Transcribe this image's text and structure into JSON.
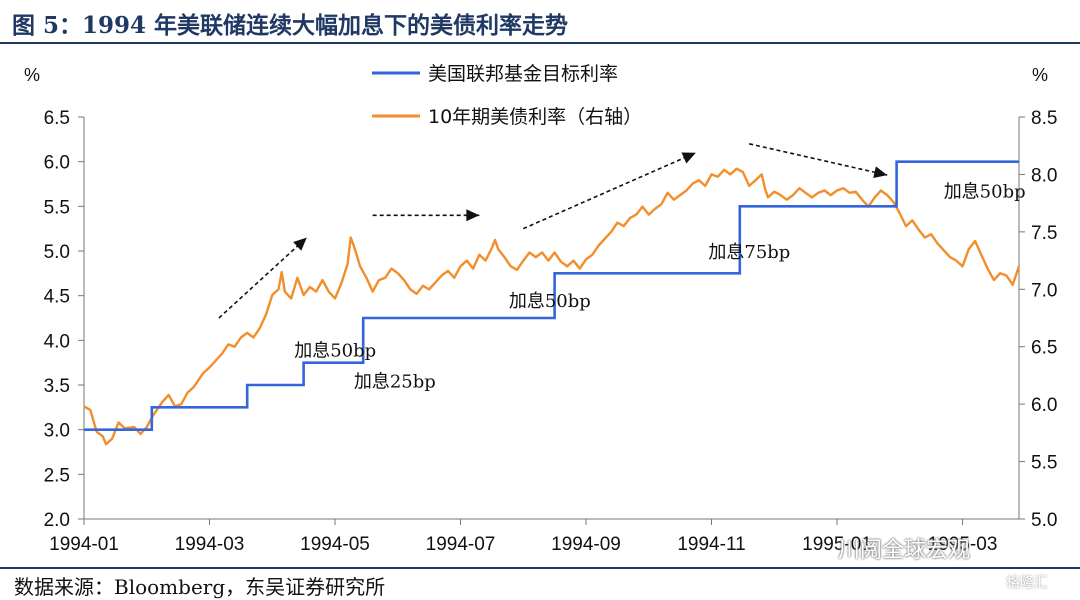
{
  "title": "图 5：1994 年美联储连续大幅加息下的美债利率走势",
  "source": "数据来源：Bloomberg，东吴证券研究所",
  "watermark": "川阅全球宏观",
  "watermark_logo": "格隆汇",
  "chart_data": {
    "type": "line",
    "left_unit": "%",
    "right_unit": "%",
    "left_ylim": [
      2.0,
      6.5
    ],
    "right_ylim": [
      5.0,
      8.5
    ],
    "left_ticks": [
      "2.0",
      "2.5",
      "3.0",
      "3.5",
      "4.0",
      "4.5",
      "5.0",
      "5.5",
      "6.0",
      "6.5"
    ],
    "right_ticks": [
      "5.0",
      "5.5",
      "6.0",
      "6.5",
      "7.0",
      "7.5",
      "8.0",
      "8.5"
    ],
    "x_ticks": [
      "1994-01",
      "1994-03",
      "1994-05",
      "1994-07",
      "1994-09",
      "1994-11",
      "1995-01",
      "1995-03"
    ],
    "x_range_months": [
      0,
      14.9
    ],
    "grid": false,
    "legend_position": "top-center",
    "colors": {
      "fed": "#3366dd",
      "ust": "#f28e2b"
    },
    "series": [
      {
        "name": "美国联邦基金目标利率",
        "axis": "left",
        "shape": "step",
        "points": [
          [
            0.0,
            3.0
          ],
          [
            1.08,
            3.0
          ],
          [
            1.08,
            3.25
          ],
          [
            2.6,
            3.25
          ],
          [
            2.6,
            3.5
          ],
          [
            3.5,
            3.5
          ],
          [
            3.5,
            3.75
          ],
          [
            4.45,
            3.75
          ],
          [
            4.45,
            4.25
          ],
          [
            7.5,
            4.25
          ],
          [
            7.5,
            4.75
          ],
          [
            10.45,
            4.75
          ],
          [
            10.45,
            5.5
          ],
          [
            12.95,
            5.5
          ],
          [
            12.95,
            6.0
          ],
          [
            14.9,
            6.0
          ]
        ]
      },
      {
        "name": "10年期美债利率（右轴）",
        "axis": "right",
        "shape": "line",
        "points": [
          [
            0.0,
            5.98
          ],
          [
            0.1,
            5.95
          ],
          [
            0.2,
            5.76
          ],
          [
            0.3,
            5.72
          ],
          [
            0.35,
            5.65
          ],
          [
            0.45,
            5.7
          ],
          [
            0.55,
            5.84
          ],
          [
            0.65,
            5.79
          ],
          [
            0.8,
            5.8
          ],
          [
            0.9,
            5.74
          ],
          [
            1.0,
            5.8
          ],
          [
            1.1,
            5.9
          ],
          [
            1.25,
            6.02
          ],
          [
            1.35,
            6.08
          ],
          [
            1.45,
            5.98
          ],
          [
            1.55,
            6.0
          ],
          [
            1.65,
            6.1
          ],
          [
            1.75,
            6.15
          ],
          [
            1.9,
            6.27
          ],
          [
            2.0,
            6.32
          ],
          [
            2.1,
            6.38
          ],
          [
            2.2,
            6.44
          ],
          [
            2.3,
            6.52
          ],
          [
            2.4,
            6.5
          ],
          [
            2.5,
            6.58
          ],
          [
            2.6,
            6.62
          ],
          [
            2.7,
            6.58
          ],
          [
            2.8,
            6.66
          ],
          [
            2.9,
            6.78
          ],
          [
            3.0,
            6.95
          ],
          [
            3.1,
            7.0
          ],
          [
            3.15,
            7.15
          ],
          [
            3.2,
            6.98
          ],
          [
            3.3,
            6.92
          ],
          [
            3.4,
            7.1
          ],
          [
            3.5,
            6.95
          ],
          [
            3.6,
            7.02
          ],
          [
            3.7,
            6.98
          ],
          [
            3.8,
            7.08
          ],
          [
            3.9,
            6.98
          ],
          [
            4.0,
            6.92
          ],
          [
            4.1,
            7.05
          ],
          [
            4.2,
            7.22
          ],
          [
            4.25,
            7.45
          ],
          [
            4.3,
            7.38
          ],
          [
            4.4,
            7.2
          ],
          [
            4.5,
            7.1
          ],
          [
            4.6,
            6.98
          ],
          [
            4.7,
            7.08
          ],
          [
            4.8,
            7.1
          ],
          [
            4.9,
            7.18
          ],
          [
            5.0,
            7.14
          ],
          [
            5.1,
            7.08
          ],
          [
            5.2,
            7.0
          ],
          [
            5.3,
            6.96
          ],
          [
            5.4,
            7.03
          ],
          [
            5.5,
            7.0
          ],
          [
            5.6,
            7.06
          ],
          [
            5.7,
            7.12
          ],
          [
            5.8,
            7.16
          ],
          [
            5.9,
            7.1
          ],
          [
            6.0,
            7.2
          ],
          [
            6.1,
            7.25
          ],
          [
            6.2,
            7.18
          ],
          [
            6.3,
            7.3
          ],
          [
            6.4,
            7.25
          ],
          [
            6.5,
            7.36
          ],
          [
            6.55,
            7.43
          ],
          [
            6.6,
            7.35
          ],
          [
            6.7,
            7.28
          ],
          [
            6.8,
            7.2
          ],
          [
            6.9,
            7.17
          ],
          [
            7.0,
            7.25
          ],
          [
            7.1,
            7.32
          ],
          [
            7.2,
            7.28
          ],
          [
            7.3,
            7.32
          ],
          [
            7.4,
            7.25
          ],
          [
            7.5,
            7.32
          ],
          [
            7.6,
            7.24
          ],
          [
            7.7,
            7.2
          ],
          [
            7.8,
            7.25
          ],
          [
            7.9,
            7.18
          ],
          [
            8.0,
            7.26
          ],
          [
            8.1,
            7.3
          ],
          [
            8.2,
            7.38
          ],
          [
            8.3,
            7.44
          ],
          [
            8.4,
            7.5
          ],
          [
            8.5,
            7.58
          ],
          [
            8.6,
            7.55
          ],
          [
            8.7,
            7.62
          ],
          [
            8.8,
            7.65
          ],
          [
            8.9,
            7.72
          ],
          [
            9.0,
            7.65
          ],
          [
            9.1,
            7.7
          ],
          [
            9.2,
            7.74
          ],
          [
            9.3,
            7.84
          ],
          [
            9.4,
            7.78
          ],
          [
            9.5,
            7.82
          ],
          [
            9.6,
            7.86
          ],
          [
            9.7,
            7.92
          ],
          [
            9.8,
            7.95
          ],
          [
            9.9,
            7.9
          ],
          [
            10.0,
            8.0
          ],
          [
            10.1,
            7.98
          ],
          [
            10.2,
            8.04
          ],
          [
            10.3,
            8.0
          ],
          [
            10.4,
            8.05
          ],
          [
            10.5,
            8.02
          ],
          [
            10.55,
            7.96
          ],
          [
            10.6,
            7.9
          ],
          [
            10.7,
            7.95
          ],
          [
            10.8,
            8.0
          ],
          [
            10.85,
            7.88
          ],
          [
            10.9,
            7.8
          ],
          [
            11.0,
            7.85
          ],
          [
            11.1,
            7.82
          ],
          [
            11.2,
            7.78
          ],
          [
            11.3,
            7.82
          ],
          [
            11.4,
            7.88
          ],
          [
            11.5,
            7.84
          ],
          [
            11.6,
            7.8
          ],
          [
            11.7,
            7.84
          ],
          [
            11.8,
            7.86
          ],
          [
            11.9,
            7.82
          ],
          [
            12.0,
            7.86
          ],
          [
            12.1,
            7.88
          ],
          [
            12.2,
            7.84
          ],
          [
            12.3,
            7.85
          ],
          [
            12.4,
            7.78
          ],
          [
            12.5,
            7.72
          ],
          [
            12.6,
            7.8
          ],
          [
            12.7,
            7.86
          ],
          [
            12.8,
            7.82
          ],
          [
            12.9,
            7.76
          ],
          [
            13.0,
            7.66
          ],
          [
            13.1,
            7.55
          ],
          [
            13.2,
            7.6
          ],
          [
            13.3,
            7.52
          ],
          [
            13.4,
            7.45
          ],
          [
            13.5,
            7.48
          ],
          [
            13.6,
            7.4
          ],
          [
            13.7,
            7.34
          ],
          [
            13.8,
            7.28
          ],
          [
            13.9,
            7.25
          ],
          [
            14.0,
            7.2
          ],
          [
            14.1,
            7.35
          ],
          [
            14.2,
            7.42
          ],
          [
            14.3,
            7.3
          ],
          [
            14.4,
            7.18
          ],
          [
            14.5,
            7.08
          ],
          [
            14.6,
            7.14
          ],
          [
            14.7,
            7.12
          ],
          [
            14.8,
            7.04
          ],
          [
            14.9,
            7.2
          ]
        ]
      }
    ],
    "annotations": [
      {
        "text": "加息25bp",
        "at_month": 4.3,
        "at_value": 3.55
      },
      {
        "text": "加息50bp",
        "at_month": 3.35,
        "at_value": 3.9
      },
      {
        "text": "加息50bp",
        "at_month": 6.77,
        "at_value": 4.45
      },
      {
        "text": "加息75bp",
        "at_month": 9.95,
        "at_value": 5.0
      },
      {
        "text": "加息50bp",
        "at_month": 13.7,
        "at_value": 5.68
      }
    ],
    "arrows": [
      {
        "from": [
          2.15,
          4.25
        ],
        "to": [
          3.55,
          5.15
        ]
      },
      {
        "from": [
          4.6,
          5.4
        ],
        "to": [
          6.3,
          5.4
        ]
      },
      {
        "from": [
          7.0,
          5.25
        ],
        "to": [
          9.75,
          6.1
        ]
      },
      {
        "from": [
          10.6,
          6.2
        ],
        "to": [
          12.8,
          5.85
        ]
      }
    ]
  }
}
